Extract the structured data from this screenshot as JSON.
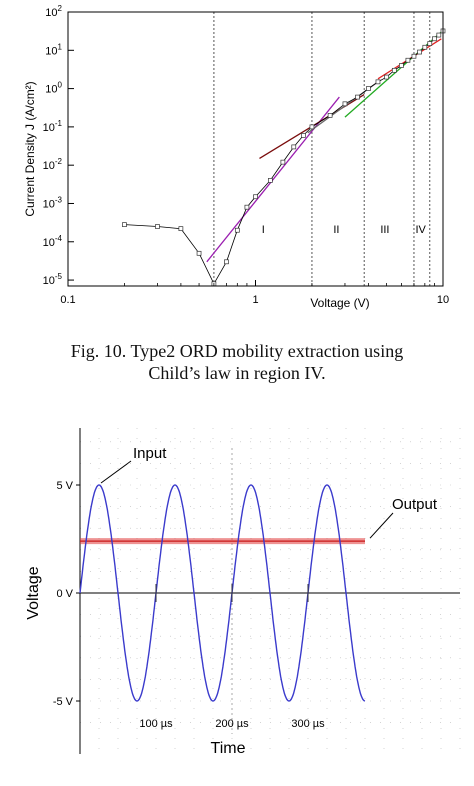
{
  "caption": {
    "line1": "Fig. 10.  Type2 ORD mobility extraction using",
    "line2": "Child’s law in region IV."
  },
  "chart_data": [
    {
      "type": "scatter",
      "title": "",
      "xlabel": "Voltage (V)",
      "ylabel": "Current Density J (A/cm²)",
      "xscale": "log",
      "yscale": "log",
      "xlim": [
        0.1,
        10
      ],
      "ylim": [
        7e-06,
        100
      ],
      "x_ticks": [
        {
          "value": 0.1,
          "label": "0.1"
        },
        {
          "value": 1,
          "label": "1"
        },
        {
          "value": 10,
          "label": "10"
        }
      ],
      "y_ticks": [
        {
          "value": 1e-05,
          "base": "10",
          "exp": "-5"
        },
        {
          "value": 0.0001,
          "base": "10",
          "exp": "-4"
        },
        {
          "value": 0.001,
          "base": "10",
          "exp": "-3"
        },
        {
          "value": 0.01,
          "base": "10",
          "exp": "-2"
        },
        {
          "value": 0.1,
          "base": "10",
          "exp": "-1"
        },
        {
          "value": 1,
          "base": "10",
          "exp": "0"
        },
        {
          "value": 10,
          "base": "10",
          "exp": "1"
        },
        {
          "value": 100,
          "base": "10",
          "exp": "2"
        }
      ],
      "region_boundaries": [
        0.6,
        2.0,
        3.8,
        7.0,
        8.5
      ],
      "regions": [
        {
          "label": "I",
          "x": 1.1,
          "y": 0.00017
        },
        {
          "label": "II",
          "x": 2.7,
          "y": 0.00017
        },
        {
          "label": "III",
          "x": 4.9,
          "y": 0.00017
        },
        {
          "label": "IV",
          "x": 7.6,
          "y": 0.00017
        }
      ],
      "series": [
        {
          "color": "#000000",
          "points": [
            [
              0.2,
              0.00028
            ],
            [
              0.3,
              0.00025
            ],
            [
              0.4,
              0.00022
            ],
            [
              0.5,
              5e-05
            ],
            [
              0.6,
              8e-06
            ],
            [
              0.7,
              3e-05
            ],
            [
              0.8,
              0.0002
            ],
            [
              0.9,
              0.0008
            ],
            [
              1.0,
              0.0015
            ],
            [
              1.2,
              0.004
            ],
            [
              1.4,
              0.012
            ],
            [
              1.6,
              0.03
            ],
            [
              1.8,
              0.06
            ],
            [
              2.0,
              0.1
            ],
            [
              2.5,
              0.2
            ],
            [
              3.0,
              0.4
            ],
            [
              3.5,
              0.6
            ],
            [
              4.0,
              1.0
            ],
            [
              4.5,
              1.5
            ],
            [
              5.0,
              2.0
            ],
            [
              5.5,
              3.0
            ],
            [
              6.0,
              4.0
            ],
            [
              6.5,
              5.5
            ],
            [
              7.0,
              7.0
            ],
            [
              7.5,
              9.0
            ],
            [
              8.0,
              12.0
            ],
            [
              8.5,
              15.0
            ],
            [
              9.0,
              20.0
            ],
            [
              9.5,
              25.0
            ],
            [
              10.0,
              32.0
            ]
          ]
        }
      ],
      "fit_lines": [
        {
          "color": "#9b1fb0",
          "points": [
            [
              0.55,
              3e-05
            ],
            [
              2.8,
              0.6
            ]
          ]
        },
        {
          "color": "#7a0c0c",
          "points": [
            [
              1.05,
              0.015
            ],
            [
              3.8,
              0.7
            ]
          ]
        },
        {
          "color": "#6b6b6b",
          "points": [
            [
              1.9,
              0.07
            ],
            [
              4.5,
              1.5
            ]
          ]
        },
        {
          "color": "#22aa22",
          "points": [
            [
              3.0,
              0.18
            ],
            [
              9.8,
              30.0
            ]
          ]
        },
        {
          "color": "#e22222",
          "points": [
            [
              4.5,
              1.8
            ],
            [
              9.8,
              20.0
            ]
          ]
        }
      ]
    },
    {
      "type": "line",
      "title": "",
      "xlabel": "Time",
      "ylabel": "Voltage",
      "xlim": [
        0,
        400
      ],
      "ylim": [
        -6.5,
        7.5
      ],
      "x_ticks": [
        {
          "value": 100,
          "label": "100 µs"
        },
        {
          "value": 200,
          "label": "200 µs"
        },
        {
          "value": 300,
          "label": "300 µs"
        }
      ],
      "y_ticks": [
        {
          "value": 5,
          "label": "5 V"
        },
        {
          "value": 0,
          "label": "0 V"
        },
        {
          "value": -5,
          "label": "-5 V"
        }
      ],
      "series": [
        {
          "name": "Input",
          "color": "#3b3bcc",
          "waveform": "sine",
          "amplitude": 5,
          "offset": 0,
          "period_us": 100,
          "first_peak_us": 25,
          "t_end_us": 375
        },
        {
          "name": "Output",
          "color": "#e03a3a",
          "waveform": "dc",
          "level": 2.4,
          "t_end_us": 375
        }
      ]
    }
  ]
}
